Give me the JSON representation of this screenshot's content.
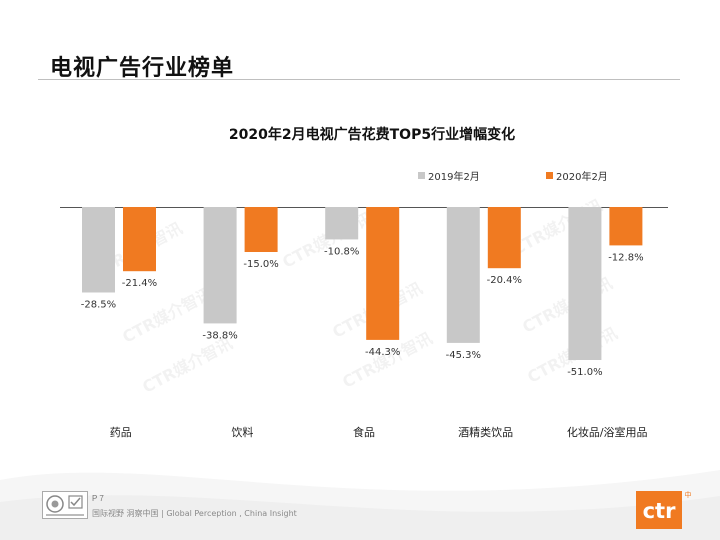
{
  "page": {
    "title": "电视广告行业榜单",
    "page_number": "P 7",
    "tagline": "国际视野  洞察中国 | Global Perception , China Insight",
    "brand": "ctr",
    "brand_mark": "中",
    "watermark": "CTR媒介智讯"
  },
  "colors": {
    "series_2019": "#c8c8c8",
    "series_2020": "#f07a21",
    "brand_orange": "#f07a21"
  },
  "chart_data": {
    "type": "bar",
    "title": "2020年2月电视广告花费TOP5行业增幅变化",
    "categories": [
      "药品",
      "饮料",
      "食品",
      "酒精类饮品",
      "化妆品/浴室用品"
    ],
    "series": [
      {
        "name": "2019年2月",
        "values": [
          -28.5,
          -38.8,
          -10.8,
          -45.3,
          -51.0
        ]
      },
      {
        "name": "2020年2月",
        "values": [
          -21.4,
          -15.0,
          -44.3,
          -20.4,
          -12.8
        ]
      }
    ],
    "data_labels": [
      [
        "-28.5%",
        "-38.8%",
        "-10.8%",
        "-45.3%",
        "-51.0%"
      ],
      [
        "-21.4%",
        "-15.0%",
        "-44.3%",
        "-20.4%",
        "-12.8%"
      ]
    ],
    "legend_position": "top-right",
    "ylim": [
      -60,
      0
    ],
    "xlabel": "",
    "ylabel": "",
    "grid": false
  }
}
